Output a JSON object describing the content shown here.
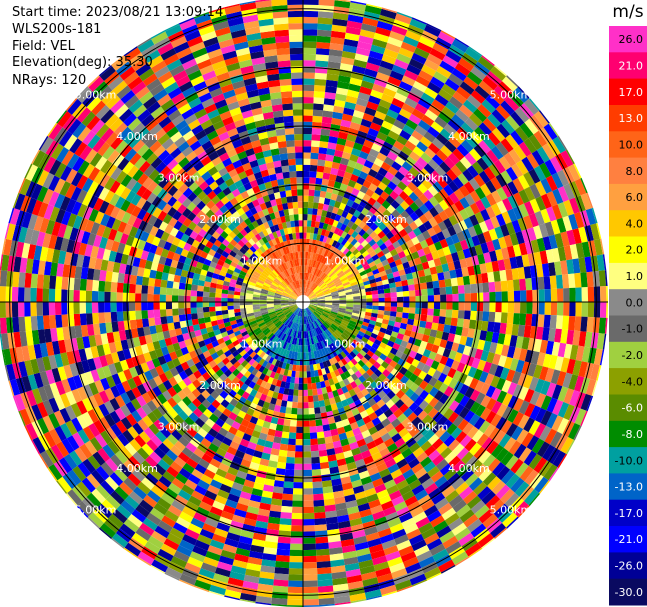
{
  "header": {
    "start_time": "Start time: 2023/08/21 13:09:14",
    "instrument": "WLS200s-181",
    "field": "Field: VEL",
    "elevation": "Elevation(deg): 35.30",
    "nrays": "NRays: 120"
  },
  "chart_data": {
    "type": "heatmap",
    "projection": "polar-ppi",
    "field": "VEL",
    "unit": "m/s",
    "nrays": 120,
    "range_rings_km": [
      1.0,
      2.0,
      3.0,
      4.0,
      5.0
    ],
    "ring_labels": [
      "1.00km",
      "2.00km",
      "3.00km",
      "4.00km",
      "5.00km"
    ],
    "max_range_km": 5.2,
    "colorbar": {
      "unit": "m/s",
      "levels": [
        26.0,
        21.0,
        17.0,
        13.0,
        10.0,
        8.0,
        6.0,
        4.0,
        2.0,
        1.0,
        0.0,
        -1.0,
        -2.0,
        -4.0,
        -6.0,
        -8.0,
        -10.0,
        -13.0,
        -17.0,
        -21.0,
        -26.0,
        -30.0
      ],
      "labels": [
        "26.0",
        "21.0",
        "17.0",
        "13.0",
        "10.0",
        "8.0",
        "6.0",
        "4.0",
        "2.0",
        "1.0",
        "0.0",
        "-1.0",
        "-2.0",
        "-4.0",
        "-6.0",
        "-8.0",
        "-10.0",
        "-13.0",
        "-17.0",
        "-21.0",
        "-26.0",
        "-30.0"
      ],
      "colors": [
        "#ff30c8",
        "#ff0070",
        "#ff0000",
        "#ff3c00",
        "#ff6418",
        "#ff8040",
        "#ffa040",
        "#ffc800",
        "#ffff00",
        "#ffff80",
        "#8a8a8a",
        "#6a6a6a",
        "#a0d040",
        "#8ca000",
        "#5a8c00",
        "#008c00",
        "#00a0a0",
        "#0064c8",
        "#0000c8",
        "#0000ff",
        "#000096",
        "#0a0a60"
      ]
    }
  }
}
